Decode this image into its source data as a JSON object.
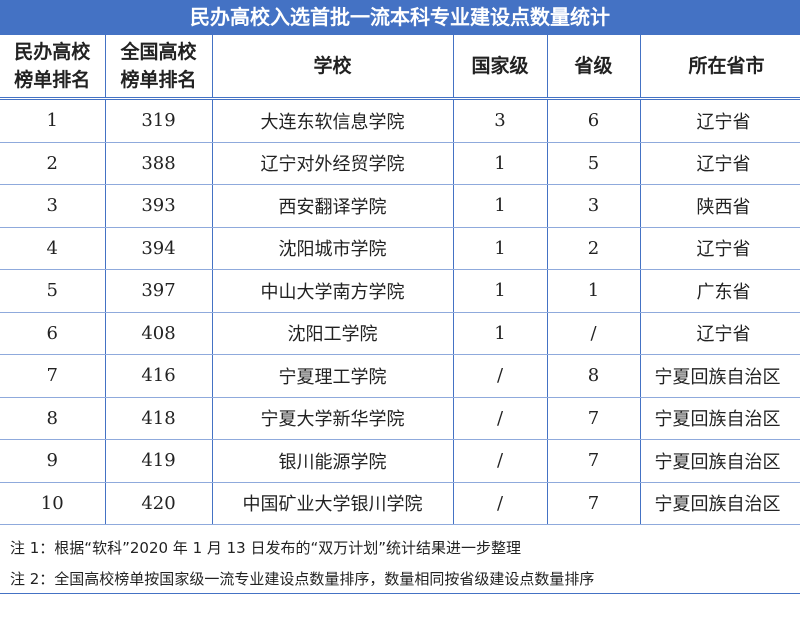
{
  "title": "民办高校入选首批一流本科专业建设点数量统计",
  "headers": [
    "民办高校榜单排名",
    "全国高校榜单排名",
    "学校",
    "国家级",
    "省级",
    "所在省市"
  ],
  "header_lines": [
    [
      "民办高校",
      "榜单排名"
    ],
    [
      "全国高校",
      "榜单排名"
    ]
  ],
  "rows": [
    [
      "1",
      "319",
      "大连东软信息学院",
      "3",
      "6",
      "辽宁省"
    ],
    [
      "2",
      "388",
      "辽宁对外经贸学院",
      "1",
      "5",
      "辽宁省"
    ],
    [
      "3",
      "393",
      "西安翻译学院",
      "1",
      "3",
      "陕西省"
    ],
    [
      "4",
      "394",
      "沈阳城市学院",
      "1",
      "2",
      "辽宁省"
    ],
    [
      "5",
      "397",
      "中山大学南方学院",
      "1",
      "1",
      "广东省"
    ],
    [
      "6",
      "408",
      "沈阳工学院",
      "1",
      "/",
      "辽宁省"
    ],
    [
      "7",
      "416",
      "宁夏理工学院",
      "/",
      "8",
      "宁夏回族自治区"
    ],
    [
      "8",
      "418",
      "宁夏大学新华学院",
      "/",
      "7",
      "宁夏回族自治区"
    ],
    [
      "9",
      "419",
      "银川能源学院",
      "/",
      "7",
      "宁夏回族自治区"
    ],
    [
      "10",
      "420",
      "中国矿业大学银川学院",
      "/",
      "7",
      "宁夏回族自治区"
    ]
  ],
  "notes": [
    "注 1：根据“软科”2020 年 1 月 13 日发布的“双万计划”统计结果进一步整理",
    "注 2：全国高校榜单按国家级一流专业建设点数量排序，数量相同按省级建设点数量排序"
  ],
  "colors": {
    "title_bg": "#4472C4",
    "border": "#4472C4"
  }
}
